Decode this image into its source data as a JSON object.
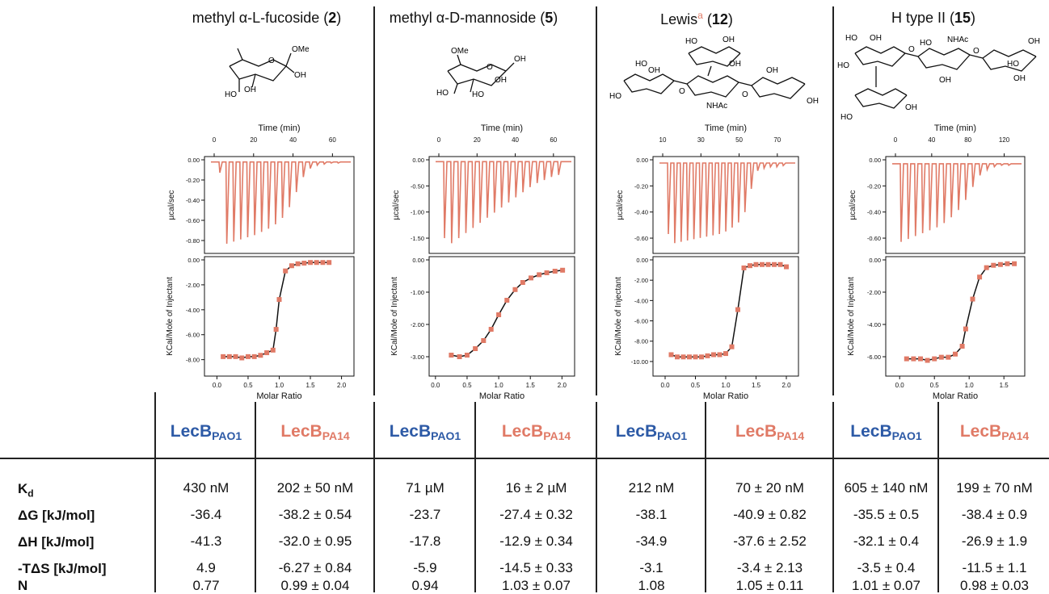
{
  "panels": [
    {
      "title_pre": "methyl α-L-fucoside (",
      "title_num": "2",
      "title_post": ")",
      "structure_labels": [
        "OMe",
        "O",
        "OH",
        "HO",
        "OH"
      ],
      "top_xticks": [
        "0",
        "20",
        "40",
        "60"
      ],
      "top_yticks": [
        "0.00",
        "-0.20",
        "-0.40",
        "-0.60",
        "-0.80"
      ],
      "bot_yticks": [
        "0.00",
        "-2.00",
        "-4.00",
        "-6.00",
        "-8.00"
      ],
      "bot_xticks": [
        "0.0",
        "0.5",
        "1.0",
        "1.5",
        "2.0"
      ]
    },
    {
      "title_pre": "methyl α-D-mannoside (",
      "title_num": "5",
      "title_post": ")",
      "structure_labels": [
        "OMe",
        "OH",
        "O",
        "HO",
        "OH",
        "HO"
      ],
      "top_xticks": [
        "0",
        "20",
        "40",
        "60"
      ],
      "top_yticks": [
        "0.00",
        "-0.50",
        "-1.00",
        "-1.50"
      ],
      "bot_yticks": [
        "0.00",
        "-1.00",
        "-2.00",
        "-3.00"
      ],
      "bot_xticks": [
        "0.0",
        "0.5",
        "1.0",
        "1.5",
        "2.0"
      ]
    },
    {
      "title_pre": "Lewis",
      "title_sup": "a",
      "title_mid": " (",
      "title_num": "12",
      "title_post": ")",
      "structure_labels": [
        "HO",
        "OH",
        "HO",
        "OH",
        "HO",
        "OH",
        "O",
        "O",
        "OH",
        "NHAc",
        "OH"
      ],
      "top_xticks": [
        "10",
        "30",
        "50",
        "70"
      ],
      "top_yticks": [
        "0.00",
        "-0.20",
        "-0.40",
        "-0.60"
      ],
      "bot_yticks": [
        "0.00",
        "-2.00",
        "-4.00",
        "-6.00",
        "-8.00",
        "-10.00"
      ],
      "bot_xticks": [
        "0.0",
        "0.5",
        "1.0",
        "1.5",
        "2.0"
      ]
    },
    {
      "title_pre": "H type II (",
      "title_num": "15",
      "title_post": ")",
      "structure_labels": [
        "HO",
        "OH",
        "NHAc",
        "OH",
        "HO",
        "HO",
        "O",
        "O",
        "OH",
        "HO",
        "OH",
        "HO",
        "OH"
      ],
      "top_xticks": [
        "0",
        "40",
        "80",
        "120"
      ],
      "top_yticks": [
        "0.00",
        "-0.20",
        "-0.40",
        "-0.60"
      ],
      "bot_yticks": [
        "0.00",
        "-2.00",
        "-4.00",
        "-6.00"
      ],
      "bot_xticks": [
        "0.0",
        "0.5",
        "1.0",
        "1.5"
      ]
    }
  ],
  "axis_labels": {
    "time": "Time (min)",
    "power": "µcal/sec",
    "heat": "KCal/Mole of Injectant",
    "ratio": "Molar Ratio"
  },
  "colors": {
    "blue": "#2d5aa6",
    "red": "#e07a66",
    "fit": "#111111"
  },
  "table": {
    "lecb": "LecB",
    "sub_pao1": "PAO1",
    "sub_pa14": "PA14",
    "rows": [
      {
        "label": "Kd",
        "label_main": "K",
        "label_sub": "d",
        "values": [
          "430 nM",
          "202 ± 50 nM",
          "71 µM",
          "16 ± 2 µM",
          "212 nM",
          "70 ± 20 nM",
          "605 ± 140 nM",
          "199 ± 70 nM"
        ]
      },
      {
        "label_main": "ΔG [kJ/mol]",
        "values": [
          "-36.4",
          "-38.2 ± 0.54",
          "-23.7",
          "-27.4 ± 0.32",
          "-38.1",
          "-40.9 ± 0.82",
          "-35.5 ± 0.5",
          "-38.4 ± 0.9"
        ]
      },
      {
        "label_main": "ΔH [kJ/mol]",
        "values": [
          "-41.3",
          "-32.0 ± 0.95",
          "-17.8",
          "-12.9 ± 0.34",
          "-34.9",
          "-37.6 ± 2.52",
          "-32.1 ± 0.4",
          "-26.9 ± 1.9"
        ]
      },
      {
        "label_main": "-TΔS [kJ/mol]",
        "values": [
          "4.9",
          "-6.27 ± 0.84",
          "-5.9",
          "-14.5 ± 0.33",
          "-3.1",
          "-3.4 ± 2.13",
          "-3.5 ± 0.4",
          "-11.5 ± 1.1"
        ]
      },
      {
        "label_main": "N",
        "values": [
          "0.77",
          "0.99 ± 0.04",
          "0.94",
          "1.03 ± 0.07",
          "1.08",
          "1.05 ± 0.11",
          "1.01 ± 0.07",
          "0.98 ± 0.03"
        ]
      }
    ]
  },
  "chart_data": [
    {
      "type": "line",
      "panel": "2 raw",
      "xlabel": "Time (min)",
      "ylabel": "µcal/sec",
      "xlim": [
        -5,
        70
      ],
      "ylim": [
        -0.85,
        0.05
      ],
      "peaks": [
        -0.1,
        -0.76,
        -0.74,
        -0.72,
        -0.7,
        -0.68,
        -0.65,
        -0.62,
        -0.58,
        -0.52,
        -0.42,
        -0.28,
        -0.14,
        -0.06,
        -0.03,
        -0.02,
        -0.01,
        -0.01
      ]
    },
    {
      "type": "scatter",
      "panel": "2 fit",
      "xlabel": "Molar Ratio",
      "ylabel": "KCal/Mole of Injectant",
      "xlim": [
        -0.2,
        2.2
      ],
      "ylim": [
        -8.8,
        0.4
      ],
      "x": [
        0.1,
        0.2,
        0.3,
        0.4,
        0.5,
        0.6,
        0.7,
        0.8,
        0.9,
        0.95,
        1.0,
        1.1,
        1.2,
        1.3,
        1.4,
        1.5,
        1.6,
        1.7,
        1.8
      ],
      "y": [
        -7.3,
        -7.3,
        -7.3,
        -7.4,
        -7.3,
        -7.3,
        -7.2,
        -7.0,
        -6.8,
        -5.2,
        -2.9,
        -0.7,
        -0.3,
        -0.15,
        -0.1,
        -0.05,
        -0.05,
        -0.05,
        -0.05
      ]
    },
    {
      "type": "line",
      "panel": "5 raw",
      "xlabel": "Time (min)",
      "ylabel": "µcal/sec",
      "xlim": [
        -5,
        70
      ],
      "ylim": [
        -1.8,
        0.1
      ],
      "peaks": [
        -1.5,
        -1.6,
        -1.5,
        -1.4,
        -1.3,
        -1.2,
        -1.1,
        -1.0,
        -0.9,
        -0.8,
        -0.7,
        -0.6,
        -0.5,
        -0.42,
        -0.36,
        -0.3,
        -0.26
      ]
    },
    {
      "type": "scatter",
      "panel": "5 fit",
      "xlabel": "Molar Ratio",
      "ylabel": "KCal/Mole of Injectant",
      "xlim": [
        -0.1,
        2.2
      ],
      "ylim": [
        -3.4,
        0.3
      ],
      "x": [
        0.25,
        0.38,
        0.5,
        0.63,
        0.76,
        0.88,
        1.0,
        1.13,
        1.26,
        1.38,
        1.51,
        1.64,
        1.76,
        1.89,
        2.01
      ],
      "y": [
        -2.75,
        -2.8,
        -2.75,
        -2.55,
        -2.3,
        -1.95,
        -1.5,
        -1.05,
        -0.72,
        -0.5,
        -0.36,
        -0.26,
        -0.2,
        -0.15,
        -0.12
      ]
    },
    {
      "type": "line",
      "panel": "12 raw",
      "xlabel": "Time (min)",
      "ylabel": "µcal/sec",
      "xlim": [
        0,
        80
      ],
      "ylim": [
        -0.7,
        0.05
      ],
      "peaks": [
        -0.55,
        -0.62,
        -0.61,
        -0.6,
        -0.59,
        -0.58,
        -0.57,
        -0.56,
        -0.55,
        -0.53,
        -0.5,
        -0.46,
        -0.38,
        -0.2,
        -0.06,
        -0.04,
        -0.03,
        -0.03,
        -0.02
      ]
    },
    {
      "type": "scatter",
      "panel": "12 fit",
      "xlabel": "Molar Ratio",
      "ylabel": "KCal/Mole of Injectant",
      "xlim": [
        -0.2,
        2.2
      ],
      "ylim": [
        -10.2,
        0.4
      ],
      "x": [
        0.1,
        0.2,
        0.3,
        0.4,
        0.5,
        0.6,
        0.7,
        0.8,
        0.9,
        1.0,
        1.1,
        1.2,
        1.3,
        1.4,
        1.5,
        1.6,
        1.7,
        1.8,
        1.9,
        2.0
      ],
      "y": [
        -8.3,
        -8.5,
        -8.5,
        -8.5,
        -8.5,
        -8.5,
        -8.4,
        -8.3,
        -8.3,
        -8.2,
        -7.6,
        -4.3,
        -0.6,
        -0.4,
        -0.3,
        -0.3,
        -0.3,
        -0.3,
        -0.3,
        -0.5
      ]
    },
    {
      "type": "line",
      "panel": "15 raw",
      "xlabel": "Time (min)",
      "ylabel": "µcal/sec",
      "xlim": [
        -10,
        140
      ],
      "ylim": [
        -0.62,
        0.05
      ],
      "peaks": [
        -0.54,
        -0.52,
        -0.5,
        -0.48,
        -0.46,
        -0.44,
        -0.41,
        -0.37,
        -0.32,
        -0.25,
        -0.16,
        -0.08,
        -0.04,
        -0.02,
        -0.01,
        -0.01
      ]
    },
    {
      "type": "scatter",
      "panel": "15 fit",
      "xlabel": "Molar Ratio",
      "ylabel": "KCal/Mole of Injectant",
      "xlim": [
        -0.2,
        1.8
      ],
      "ylim": [
        -7.2,
        0.4
      ],
      "x": [
        0.1,
        0.2,
        0.3,
        0.4,
        0.5,
        0.6,
        0.7,
        0.8,
        0.9,
        0.95,
        1.05,
        1.15,
        1.25,
        1.35,
        1.45,
        1.55,
        1.65
      ],
      "y": [
        -6.1,
        -6.1,
        -6.1,
        -6.2,
        -6.1,
        -6.0,
        -6.0,
        -5.8,
        -5.3,
        -4.2,
        -2.3,
        -0.9,
        -0.3,
        -0.15,
        -0.1,
        -0.05,
        -0.05
      ]
    }
  ]
}
